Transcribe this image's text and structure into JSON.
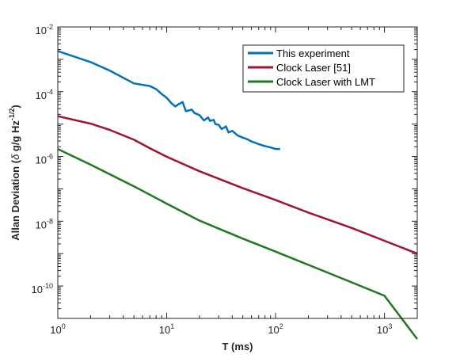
{
  "chart_data": {
    "type": "line",
    "title": "",
    "xlabel": "T (ms)",
    "ylabel_parts": [
      "Allan Deviation (",
      "δ",
      " g/g Hz",
      "-1/2",
      ")"
    ],
    "xscale": "log",
    "yscale": "log",
    "xlim": [
      1,
      2000
    ],
    "ylim": [
      1e-11,
      0.01
    ],
    "grid": false,
    "legend_position": "top-right",
    "x_ticks": [
      {
        "base": "10",
        "exp": "0",
        "value": 1
      },
      {
        "base": "10",
        "exp": "1",
        "value": 10
      },
      {
        "base": "10",
        "exp": "2",
        "value": 100
      },
      {
        "base": "10",
        "exp": "3",
        "value": 1000
      }
    ],
    "y_ticks": [
      {
        "base": "10",
        "exp": "-10",
        "value": 1e-10
      },
      {
        "base": "10",
        "exp": "-8",
        "value": 1e-08
      },
      {
        "base": "10",
        "exp": "-6",
        "value": 1e-06
      },
      {
        "base": "10",
        "exp": "-4",
        "value": 0.0001
      },
      {
        "base": "10",
        "exp": "-2",
        "value": 0.01
      }
    ],
    "series": [
      {
        "name": "This experiment",
        "color": "#0072BD",
        "x": [
          1,
          2,
          3,
          5,
          7,
          8,
          9,
          10,
          11,
          12,
          13,
          14,
          15,
          17,
          18,
          20,
          22,
          24,
          25,
          27,
          28,
          30,
          32,
          35,
          37,
          40,
          45,
          50,
          55,
          60,
          70,
          80,
          90,
          100,
          110
        ],
        "y": [
          0.0018,
          0.00082,
          0.00045,
          0.00018,
          0.00015,
          0.00012,
          8.5e-05,
          6.5e-05,
          4.5e-05,
          3.5e-05,
          4.2e-05,
          4.8e-05,
          2.5e-05,
          2.8e-05,
          2.2e-05,
          1.9e-05,
          1.3e-05,
          1.6e-05,
          1.25e-05,
          1.35e-05,
          1e-05,
          9.5e-06,
          7e-06,
          8.5e-06,
          5.5e-06,
          6.2e-06,
          4.4e-06,
          3.8e-06,
          3.4e-06,
          2.9e-06,
          2.4e-06,
          2.1e-06,
          1.9e-06,
          1.7e-06,
          1.7e-06
        ]
      },
      {
        "name": "Clock Laser [51]",
        "color": "#A2142F",
        "x": [
          1,
          2,
          3,
          5,
          7,
          10,
          20,
          50,
          100,
          200,
          500,
          1000,
          2000
        ],
        "y": [
          1.75e-05,
          1.03e-05,
          6.6e-06,
          3.3e-06,
          1.8e-06,
          9.8e-07,
          3.5e-07,
          1.05e-07,
          4.5e-08,
          1.85e-08,
          6.2e-09,
          2.5e-09,
          1e-09
        ]
      },
      {
        "name": "Clock Laser with LMT",
        "color": "#1F7A1F",
        "x": [
          1,
          2,
          5,
          10,
          20,
          50,
          100,
          200,
          500,
          1000,
          2000
        ],
        "y": [
          1.7e-06,
          5.6e-07,
          1.2e-07,
          3.5e-08,
          1.05e-08,
          2.9e-09,
          1.15e-09,
          4.5e-10,
          1.3e-10,
          5e-11,
          2.3e-12
        ]
      }
    ]
  }
}
